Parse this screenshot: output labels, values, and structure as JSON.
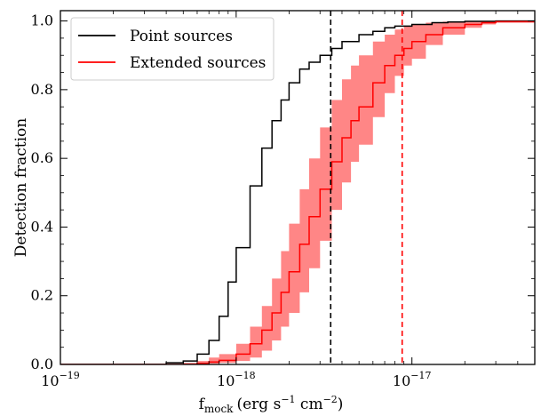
{
  "chart_data": {
    "type": "line",
    "xscale": "log",
    "xlim": [
      1e-19,
      5e-17
    ],
    "ylim": [
      0.0,
      1.03
    ],
    "xlabel": "f",
    "xlabel_subscript": "mock",
    "xlabel_units": "(erg s",
    "xlabel_units_sup1": "−1",
    "xlabel_units_mid": " cm",
    "xlabel_units_sup2": "−2",
    "xlabel_units_end": ")",
    "ylabel": "Detection fraction",
    "xticks": [
      {
        "base": "10",
        "exp": "−19"
      },
      {
        "base": "10",
        "exp": "−18"
      },
      {
        "base": "10",
        "exp": "−17"
      }
    ],
    "yticks": [
      "0.0",
      "0.2",
      "0.4",
      "0.6",
      "0.8",
      "1.0"
    ],
    "legend": {
      "location": "upper-left",
      "entries": [
        "Point sources",
        "Extended sources"
      ]
    },
    "series": [
      {
        "name": "Point sources",
        "color": "#000000",
        "style": "step",
        "x": [
          3e-19,
          4e-19,
          5e-19,
          6e-19,
          7e-19,
          8e-19,
          9e-19,
          1e-18,
          1.2e-18,
          1.4e-18,
          1.6e-18,
          1.8e-18,
          2e-18,
          2.3e-18,
          2.6e-18,
          3e-18,
          3.5e-18,
          4e-18,
          5e-18,
          6e-18,
          7e-18,
          8e-18,
          1e-17,
          1.3e-17,
          1.6e-17,
          2e-17,
          3e-17,
          5e-17
        ],
        "y": [
          0.0,
          0.005,
          0.01,
          0.03,
          0.07,
          0.14,
          0.24,
          0.34,
          0.52,
          0.63,
          0.71,
          0.77,
          0.82,
          0.86,
          0.88,
          0.9,
          0.92,
          0.94,
          0.96,
          0.97,
          0.98,
          0.985,
          0.99,
          0.995,
          0.997,
          0.999,
          1.0,
          1.0
        ]
      },
      {
        "name": "Extended sources",
        "color": "#ff0000",
        "style": "step",
        "x": [
          5e-19,
          6e-19,
          7e-19,
          8e-19,
          1e-18,
          1.2e-18,
          1.4e-18,
          1.6e-18,
          1.8e-18,
          2e-18,
          2.3e-18,
          2.6e-18,
          3e-18,
          3.5e-18,
          4e-18,
          4.5e-18,
          5e-18,
          6e-18,
          7e-18,
          8e-18,
          9e-18,
          1e-17,
          1.2e-17,
          1.5e-17,
          2e-17,
          2.5e-17,
          3e-17,
          5e-17
        ],
        "y": [
          0.0,
          0.003,
          0.007,
          0.012,
          0.03,
          0.06,
          0.1,
          0.15,
          0.21,
          0.27,
          0.35,
          0.43,
          0.51,
          0.59,
          0.66,
          0.71,
          0.75,
          0.82,
          0.87,
          0.9,
          0.92,
          0.94,
          0.96,
          0.98,
          0.99,
          0.995,
          0.998,
          1.0
        ]
      }
    ],
    "band": {
      "series": "Extended sources",
      "color": "#ff7f7f",
      "x": [
        5e-19,
        6e-19,
        7e-19,
        8e-19,
        1e-18,
        1.2e-18,
        1.4e-18,
        1.6e-18,
        1.8e-18,
        2e-18,
        2.3e-18,
        2.6e-18,
        3e-18,
        3.5e-18,
        4e-18,
        4.5e-18,
        5e-18,
        6e-18,
        7e-18,
        8e-18,
        9e-18,
        1e-17,
        1.2e-17,
        1.5e-17,
        2e-17,
        2.5e-17,
        3e-17,
        5e-17
      ],
      "lower": [
        0.0,
        0.0,
        0.002,
        0.005,
        0.01,
        0.02,
        0.04,
        0.07,
        0.11,
        0.15,
        0.21,
        0.28,
        0.36,
        0.45,
        0.53,
        0.59,
        0.64,
        0.72,
        0.79,
        0.84,
        0.87,
        0.89,
        0.93,
        0.96,
        0.98,
        0.99,
        0.995,
        1.0
      ],
      "upper": [
        0.005,
        0.01,
        0.02,
        0.03,
        0.06,
        0.11,
        0.17,
        0.25,
        0.33,
        0.41,
        0.51,
        0.6,
        0.69,
        0.77,
        0.83,
        0.87,
        0.9,
        0.94,
        0.96,
        0.975,
        0.985,
        0.99,
        0.995,
        0.998,
        1.0,
        1.0,
        1.0,
        1.0
      ]
    },
    "vlines": [
      {
        "x": 3.45e-18,
        "color": "#000000",
        "style": "dashed"
      },
      {
        "x": 8.8e-18,
        "color": "#ff0000",
        "style": "dashed"
      }
    ]
  }
}
